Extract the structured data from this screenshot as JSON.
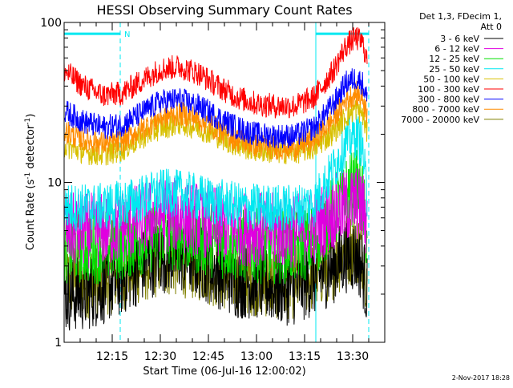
{
  "chart_data": {
    "type": "line",
    "title": "HESSI Observing Summary Count Rates",
    "xlabel": "Start Time (06-Jul-16 12:00:02)",
    "ylabel_main": "Count Rate (s",
    "ylabel_exp1": "-1",
    "ylabel_mid": " detector",
    "ylabel_exp2": "-1",
    "ylabel_end": ")",
    "y_scale": "log",
    "ylim": [
      1,
      100
    ],
    "xlim_minutes": [
      0,
      100
    ],
    "x_tick_minutes": [
      15,
      30,
      45,
      60,
      75,
      90
    ],
    "x_tick_labels": [
      "12:15",
      "12:30",
      "12:45",
      "13:00",
      "13:15",
      "13:30"
    ],
    "y_tick_values": [
      1,
      10,
      100
    ],
    "y_tick_labels": [
      "1",
      "10",
      "100"
    ],
    "legend": {
      "position": "top-right",
      "header_line1": "Det 1,3, FDecim 1,",
      "header_line2": "Att 0"
    },
    "series": [
      {
        "name": "3 - 6 keV",
        "color": "#000000",
        "x": [
          0,
          6,
          12,
          18,
          24,
          30,
          36,
          42,
          48,
          54,
          60,
          66,
          72,
          78,
          84,
          88,
          91,
          93,
          94.5
        ],
        "y": [
          2,
          2,
          2.2,
          2.5,
          3,
          3.5,
          3.5,
          3.2,
          2.8,
          2.4,
          2.4,
          2.2,
          2.2,
          2.5,
          3,
          3.5,
          3.5,
          3,
          2
        ]
      },
      {
        "name": "6 - 12 keV",
        "color": "#e000e0",
        "x": [
          0,
          6,
          12,
          18,
          24,
          30,
          36,
          42,
          48,
          54,
          60,
          66,
          72,
          78,
          84,
          88,
          91,
          93,
          94.5
        ],
        "y": [
          5,
          5,
          5,
          5.3,
          5.8,
          6.3,
          6.2,
          5.9,
          5.5,
          5.2,
          5.1,
          5,
          5,
          5.3,
          6.5,
          7,
          7.5,
          7,
          5.5
        ]
      },
      {
        "name": "12 - 25 keV",
        "color": "#00e000",
        "x": [
          0,
          6,
          12,
          18,
          24,
          30,
          36,
          42,
          48,
          54,
          60,
          66,
          72,
          78,
          84,
          88,
          91,
          93,
          94.5
        ],
        "y": [
          4,
          4,
          4,
          4.2,
          4.5,
          4.8,
          4.8,
          4.5,
          4.3,
          4.1,
          4,
          4,
          4,
          4.3,
          6.5,
          8.5,
          9.5,
          8,
          4.5
        ]
      },
      {
        "name": "25 - 50 keV",
        "color": "#00e8f0",
        "x": [
          0,
          6,
          12,
          18,
          24,
          30,
          36,
          42,
          48,
          54,
          60,
          66,
          72,
          78,
          84,
          88,
          91,
          93,
          94.5
        ],
        "y": [
          7,
          7,
          7,
          7.3,
          7.9,
          8.6,
          8.5,
          8,
          7.5,
          7.1,
          7,
          6.9,
          6.9,
          7.4,
          12,
          18,
          20,
          17,
          8
        ]
      },
      {
        "name": "50 - 100 keV",
        "color": "#d8c000",
        "x": [
          0,
          6,
          12,
          18,
          24,
          30,
          36,
          42,
          48,
          54,
          60,
          66,
          72,
          78,
          84,
          88,
          91,
          93,
          94.5
        ],
        "y": [
          17,
          15.5,
          15,
          16,
          19,
          22,
          23.5,
          22,
          19.5,
          17,
          16,
          15.5,
          15.5,
          16.5,
          20.5,
          26,
          29,
          27,
          20
        ]
      },
      {
        "name": "100 - 300 keV",
        "color": "#ff0000",
        "x": [
          0,
          6,
          12,
          18,
          24,
          30,
          36,
          42,
          48,
          54,
          60,
          66,
          72,
          78,
          84,
          88,
          91,
          93,
          94.5
        ],
        "y": [
          50,
          40,
          35,
          36,
          43,
          51,
          53,
          48,
          40,
          34,
          31,
          30,
          30,
          34,
          50,
          72,
          80,
          75,
          58
        ]
      },
      {
        "name": "300 - 800 keV",
        "color": "#0000ff",
        "x": [
          0,
          6,
          12,
          18,
          24,
          30,
          36,
          42,
          48,
          54,
          60,
          66,
          72,
          78,
          84,
          88,
          91,
          93,
          94.5
        ],
        "y": [
          28,
          24,
          22,
          23,
          27,
          32,
          33,
          30,
          25.5,
          22,
          20,
          19.5,
          19.5,
          22,
          31,
          42,
          45,
          42,
          33
        ]
      },
      {
        "name": "800 - 7000 keV",
        "color": "#ff8c00",
        "x": [
          0,
          6,
          12,
          18,
          24,
          30,
          36,
          42,
          48,
          54,
          60,
          66,
          72,
          78,
          84,
          88,
          91,
          93,
          94.5
        ],
        "y": [
          21,
          18.5,
          17.5,
          18,
          21.5,
          25.5,
          27,
          25,
          21.5,
          18.5,
          17,
          16.5,
          16.5,
          18.5,
          25,
          33,
          36,
          34,
          27
        ]
      },
      {
        "name": "7000 - 20000 keV",
        "color": "#808000",
        "x": [
          0,
          6,
          12,
          18,
          24,
          30,
          36,
          42,
          48,
          54,
          60,
          66,
          72,
          78,
          84,
          88,
          91,
          93,
          94.5
        ],
        "y": [
          2.5,
          2.4,
          2.5,
          2.7,
          3,
          3.3,
          3.3,
          3.1,
          2.8,
          2.6,
          2.5,
          2.4,
          2.4,
          2.7,
          3.2,
          3.8,
          4,
          3.6,
          2.6
        ]
      }
    ],
    "annotations": {
      "night_flag_label": "N",
      "night_flag_color": "#00e8f0",
      "night_intervals_minutes": [
        [
          0,
          17.5
        ],
        [
          78.5,
          95
        ]
      ],
      "night_flag_level": 85
    }
  },
  "footer": {
    "generated_date": "2-Nov-2017 18:28"
  }
}
